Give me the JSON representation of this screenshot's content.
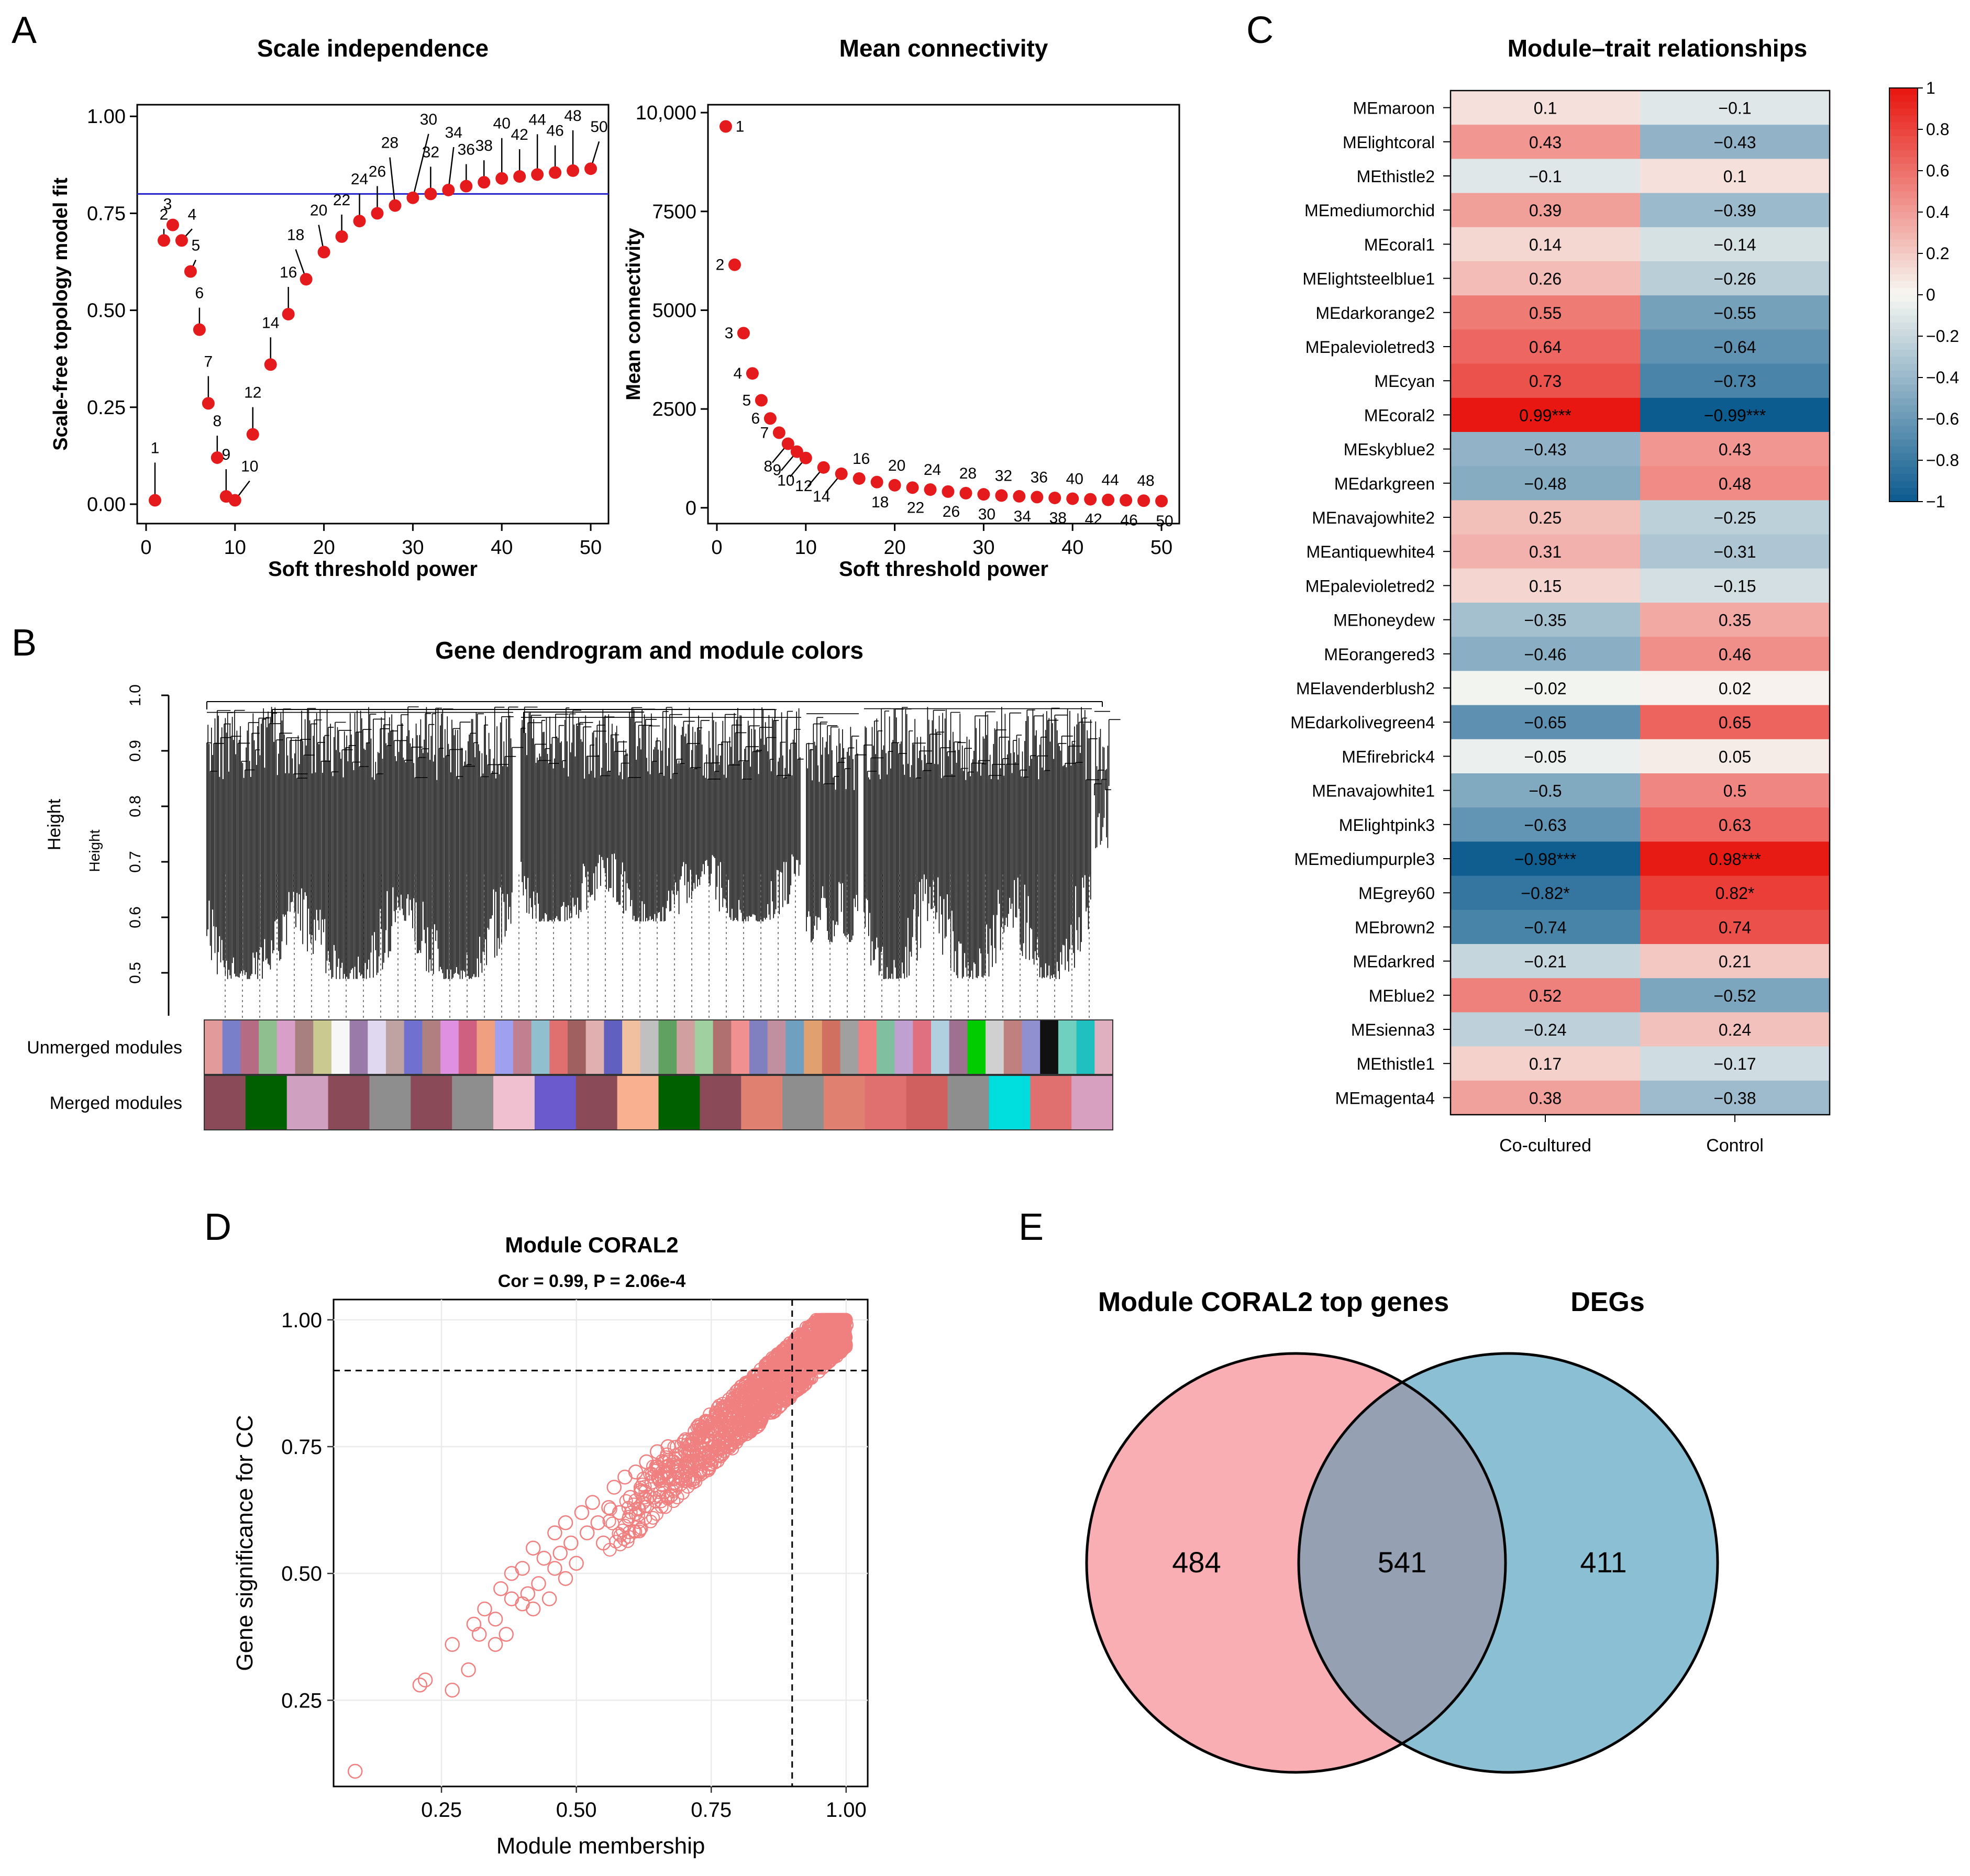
{
  "panel_labels": {
    "a": "A",
    "b": "B",
    "c": "C",
    "d": "D",
    "e": "E"
  },
  "colors": {
    "point_red": "#e41a1c",
    "threshold_line": "#2222cc",
    "heat_high": "#e8150f",
    "heat_mid": "#f7f7f2",
    "heat_low": "#0b5a8e",
    "scatter": "#f08080",
    "venn_left": "#f9aeb4",
    "venn_right": "#8bbfd4",
    "venn_overlap": "#95a1b3"
  },
  "chart_data": [
    {
      "id": "scale_independence",
      "type": "scatter",
      "title": "Scale independence",
      "xlabel": "Soft threshold power",
      "ylabel": "Scale-free topology model fit",
      "xlim": [
        -1,
        52
      ],
      "ylim": [
        -0.05,
        1.03
      ],
      "xticks": [
        "0",
        "10",
        "20",
        "30",
        "40",
        "50"
      ],
      "yticks": [
        "0.00",
        "0.25",
        "0.50",
        "0.75",
        "1.00"
      ],
      "hline": 0.8,
      "x": [
        1,
        2,
        3,
        4,
        5,
        6,
        7,
        8,
        9,
        10,
        12,
        14,
        16,
        18,
        20,
        22,
        24,
        26,
        28,
        30,
        32,
        34,
        36,
        38,
        40,
        42,
        44,
        46,
        48,
        50
      ],
      "y": [
        0.01,
        0.68,
        0.72,
        0.68,
        0.6,
        0.45,
        0.26,
        0.12,
        0.02,
        0.01,
        0.18,
        0.36,
        0.49,
        0.58,
        0.65,
        0.69,
        0.73,
        0.75,
        0.77,
        0.79,
        0.8,
        0.81,
        0.82,
        0.83,
        0.84,
        0.845,
        0.85,
        0.855,
        0.86,
        0.865
      ],
      "labels": [
        "1",
        "2",
        "3",
        "4",
        "5",
        "6",
        "7",
        "8",
        "9",
        "10",
        "12",
        "14",
        "16",
        "18",
        "20",
        "22",
        "24",
        "26",
        "28",
        "30",
        "32",
        "34",
        "36",
        "38",
        "40",
        "42",
        "44",
        "46",
        "48",
        "50"
      ]
    },
    {
      "id": "mean_connectivity",
      "type": "scatter",
      "title": "Mean connectivity",
      "xlabel": "Soft threshold power",
      "ylabel": "Mean connectivity",
      "xlim": [
        -1,
        52
      ],
      "ylim": [
        -400,
        10200
      ],
      "xticks": [
        "0",
        "10",
        "20",
        "30",
        "40",
        "50"
      ],
      "yticks": [
        "0",
        "2500",
        "5000",
        "7500",
        "10,000"
      ],
      "x": [
        1,
        2,
        3,
        4,
        5,
        6,
        7,
        8,
        9,
        10,
        12,
        14,
        16,
        18,
        20,
        22,
        24,
        26,
        28,
        30,
        32,
        34,
        36,
        38,
        40,
        42,
        44,
        46,
        48,
        50
      ],
      "y": [
        9650,
        6150,
        4420,
        3400,
        2720,
        2260,
        1900,
        1620,
        1420,
        1260,
        1020,
        860,
        740,
        650,
        570,
        510,
        460,
        410,
        370,
        340,
        310,
        290,
        270,
        250,
        230,
        215,
        200,
        190,
        180,
        170
      ],
      "labels": [
        "1",
        "2",
        "3",
        "4",
        "5",
        "6",
        "7",
        "8",
        "9",
        "10",
        "12",
        "14",
        "16",
        "18",
        "20",
        "22",
        "24",
        "26",
        "28",
        "30",
        "32",
        "34",
        "36",
        "38",
        "40",
        "42",
        "44",
        "46",
        "48",
        "50"
      ]
    },
    {
      "id": "module_trait",
      "type": "heatmap",
      "title": "Module–trait relationships",
      "columns": [
        "Co-cultured",
        "Control"
      ],
      "rows": [
        "MEmaroon",
        "MElightcoral",
        "MEthistle2",
        "MEmediumorchid",
        "MEcoral1",
        "MElightsteelblue1",
        "MEdarkorange2",
        "MEpalevioletred3",
        "MEcyan",
        "MEcoral2",
        "MEskyblue2",
        "MEdarkgreen",
        "MEnavajowhite2",
        "MEantiquewhite4",
        "MEpalevioletred2",
        "MEhoneydew",
        "MEorangered3",
        "MElavenderblush2",
        "MEdarkolivegreen4",
        "MEfirebrick4",
        "MEnavajowhite1",
        "MElightpink3",
        "MEmediumpurple3",
        "MEgrey60",
        "MEbrown2",
        "MEdarkred",
        "MEblue2",
        "MEsienna3",
        "MEthistle1",
        "MEmagenta4"
      ],
      "values": [
        0.1,
        0.43,
        -0.1,
        0.39,
        0.14,
        0.26,
        0.55,
        0.64,
        0.73,
        0.99,
        -0.43,
        -0.48,
        0.25,
        0.31,
        0.15,
        -0.35,
        -0.46,
        -0.02,
        -0.65,
        -0.05,
        -0.5,
        -0.63,
        -0.98,
        -0.82,
        -0.74,
        -0.21,
        0.52,
        -0.24,
        0.17,
        0.38
      ],
      "cells": [
        [
          "0.1",
          "−0.1"
        ],
        [
          "0.43",
          "−0.43"
        ],
        [
          "−0.1",
          "0.1"
        ],
        [
          "0.39",
          "−0.39"
        ],
        [
          "0.14",
          "−0.14"
        ],
        [
          "0.26",
          "−0.26"
        ],
        [
          "0.55",
          "−0.55"
        ],
        [
          "0.64",
          "−0.64"
        ],
        [
          "0.73",
          "−0.73"
        ],
        [
          "0.99***",
          "−0.99***"
        ],
        [
          "−0.43",
          "0.43"
        ],
        [
          "−0.48",
          "0.48"
        ],
        [
          "0.25",
          "−0.25"
        ],
        [
          "0.31",
          "−0.31"
        ],
        [
          "0.15",
          "−0.15"
        ],
        [
          "−0.35",
          "0.35"
        ],
        [
          "−0.46",
          "0.46"
        ],
        [
          "−0.02",
          "0.02"
        ],
        [
          "−0.65",
          "0.65"
        ],
        [
          "−0.05",
          "0.05"
        ],
        [
          "−0.5",
          "0.5"
        ],
        [
          "−0.63",
          "0.63"
        ],
        [
          "−0.98***",
          "0.98***"
        ],
        [
          "−0.82*",
          "0.82*"
        ],
        [
          "−0.74",
          "0.74"
        ],
        [
          "−0.21",
          "0.21"
        ],
        [
          "0.52",
          "−0.52"
        ],
        [
          "−0.24",
          "0.24"
        ],
        [
          "0.17",
          "−0.17"
        ],
        [
          "0.38",
          "−0.38"
        ]
      ],
      "colorbar_ticks": [
        "1",
        "0.8",
        "0.6",
        "0.4",
        "0.2",
        "0",
        "−0.2",
        "−0.4",
        "−0.6",
        "−0.8",
        "−1"
      ],
      "colorbar_range": [
        -1,
        1
      ]
    },
    {
      "id": "module_coral2",
      "type": "scatter",
      "title": "Module CORAL2",
      "subtitle": "Cor = 0.99, P = 2.06e-4",
      "xlabel": "Module membership",
      "ylabel": "Gene significance for CC",
      "xlim": [
        0.05,
        1.04
      ],
      "ylim": [
        0.08,
        1.04
      ],
      "xticks": [
        "0.25",
        "0.50",
        "0.75",
        "1.00"
      ],
      "yticks": [
        "0.25",
        "0.50",
        "0.75",
        "1.00"
      ],
      "vline": 0.9,
      "hline": 0.9,
      "x": [
        0.09,
        0.21,
        0.22,
        0.27,
        0.27,
        0.3,
        0.31,
        0.32,
        0.33,
        0.35,
        0.35,
        0.36,
        0.37,
        0.38,
        0.38,
        0.4,
        0.4,
        0.41,
        0.42,
        0.42,
        0.43,
        0.44,
        0.45,
        0.46,
        0.46,
        0.47,
        0.48,
        0.48,
        0.49,
        0.5,
        0.51,
        0.52,
        0.53,
        0.54,
        0.55,
        0.56,
        0.57,
        0.58,
        0.59,
        0.6,
        0.61,
        0.62,
        0.63,
        0.64,
        0.65,
        0.66,
        0.67,
        0.68,
        0.7,
        0.72,
        0.74,
        0.76,
        0.78,
        0.8,
        0.82,
        0.84,
        0.86,
        0.88,
        0.9,
        0.92,
        0.94,
        0.96,
        0.98,
        1.0
      ],
      "y": [
        0.11,
        0.28,
        0.29,
        0.27,
        0.36,
        0.31,
        0.4,
        0.38,
        0.43,
        0.36,
        0.41,
        0.47,
        0.38,
        0.45,
        0.5,
        0.44,
        0.51,
        0.46,
        0.43,
        0.55,
        0.48,
        0.53,
        0.45,
        0.51,
        0.58,
        0.54,
        0.49,
        0.6,
        0.56,
        0.52,
        0.62,
        0.58,
        0.64,
        0.6,
        0.56,
        0.63,
        0.67,
        0.62,
        0.69,
        0.65,
        0.7,
        0.66,
        0.72,
        0.68,
        0.74,
        0.7,
        0.75,
        0.72,
        0.76,
        0.78,
        0.8,
        0.81,
        0.83,
        0.85,
        0.86,
        0.88,
        0.9,
        0.91,
        0.93,
        0.94,
        0.96,
        0.97,
        0.98,
        0.99
      ]
    },
    {
      "id": "venn",
      "type": "venn",
      "sets": [
        {
          "name": "Module CORAL2 top genes",
          "only": "484"
        },
        {
          "name": "DEGs",
          "only": "411"
        }
      ],
      "overlap": "541"
    }
  ],
  "dendrogram": {
    "title": "Gene dendrogram and module colors",
    "ylabel": "Height",
    "yticks": [
      "1.0",
      "0.9",
      "0.8",
      "0.7",
      "0.6",
      "0.5"
    ],
    "row_labels": [
      "Unmerged modules",
      "Merged modules"
    ],
    "unmerged_colors": [
      "#e29a9a",
      "#7a7fc9",
      "#b56b84",
      "#8fbf8f",
      "#d8a0c8",
      "#a98080",
      "#c9c990",
      "#f7f7f7",
      "#9a7aa8",
      "#e0d7f0",
      "#bfa3a3",
      "#7070d0",
      "#b08080",
      "#e090e0",
      "#d06080",
      "#f0a080",
      "#a0a0f0",
      "#c08090",
      "#90c0d0",
      "#e07070",
      "#a06060",
      "#e0b0b0",
      "#6060c0",
      "#f0c0a0",
      "#c0c0c0",
      "#60a060",
      "#d0a0a0",
      "#a0d0a0",
      "#b07070",
      "#f09090",
      "#8080c0",
      "#c090a0",
      "#70a0c0",
      "#e0a070",
      "#d07060",
      "#a0a0a0",
      "#f08080",
      "#80c0a0",
      "#c0a0d0",
      "#e07080",
      "#b0d0e0",
      "#a07090",
      "#00cc00",
      "#d0d0d0",
      "#c08080",
      "#9090d0",
      "#111111",
      "#70d0c0",
      "#20c0c0",
      "#e0b0c0"
    ],
    "merged_colors": [
      "#8b4a58",
      "#006000",
      "#d0a0c0",
      "#8b4a58",
      "#8e8e8e",
      "#8b4a58",
      "#8e8e8e",
      "#f0c0d0",
      "#6a5acd",
      "#8b4a58",
      "#f8b090",
      "#006000",
      "#8b4a58",
      "#e08070",
      "#8e8e8e",
      "#e08070",
      "#e07070",
      "#d06060",
      "#8e8e8e",
      "#00dddd",
      "#e07070",
      "#d8a0c0"
    ]
  }
}
